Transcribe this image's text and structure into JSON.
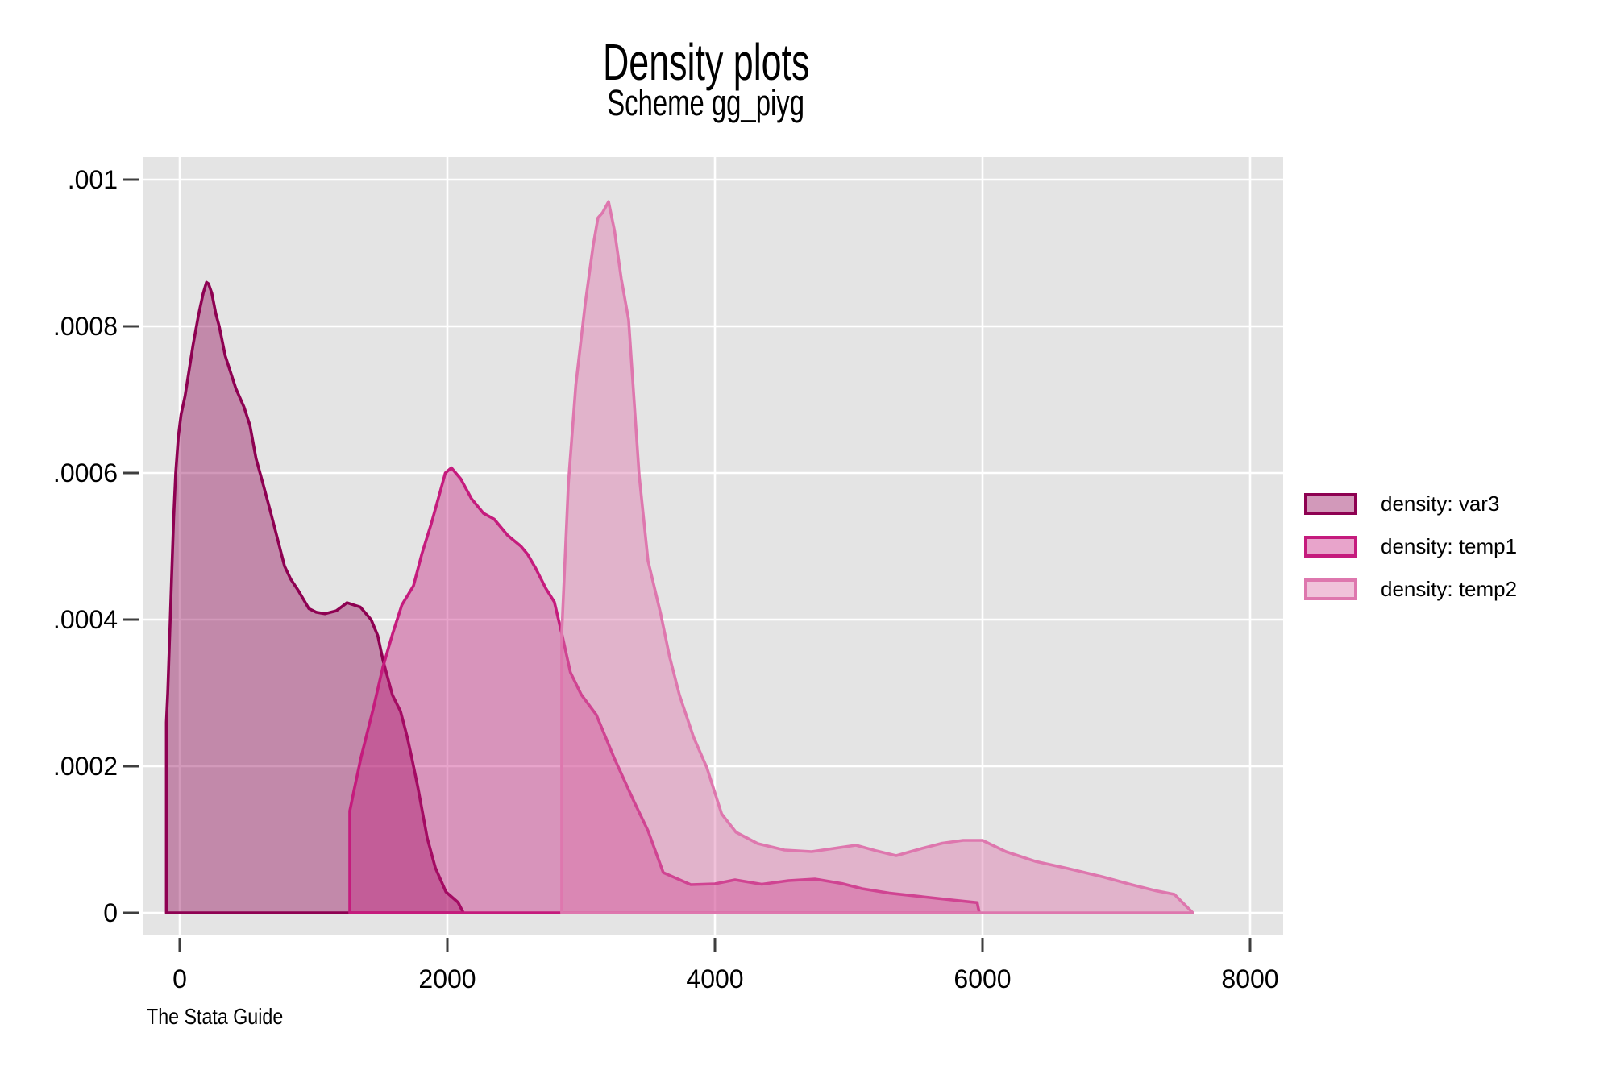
{
  "title": "Density plots",
  "subtitle": "Scheme gg_piyg",
  "caption": "The Stata Guide",
  "colors": {
    "plot_background": "#e4e4e4",
    "gridline": "#ffffff",
    "tick": "#3e3e3e",
    "text": "#000000",
    "var3_stroke": "#8e0152",
    "temp1_stroke": "#c51b7d",
    "temp2_stroke": "#de77ae"
  },
  "legend": {
    "position": "right",
    "items": [
      {
        "label": "density: var3",
        "stroke": "#8e0152",
        "fill": "rgba(142,1,82,0.40)"
      },
      {
        "label": "density: temp1",
        "stroke": "#c51b7d",
        "fill": "rgba(197,27,125,0.40)"
      },
      {
        "label": "density: temp2",
        "stroke": "#de77ae",
        "fill": "rgba(222,119,174,0.45)"
      }
    ]
  },
  "chart_data": {
    "type": "area",
    "title": "Density plots",
    "subtitle": "Scheme gg_piyg",
    "xlabel": "",
    "ylabel": "",
    "xlim": [
      -280,
      8250
    ],
    "ylim": [
      0,
      0.00103
    ],
    "grid": "white gridlines on gray plot region, both axes",
    "legend_position": "right",
    "x_ticks": [
      {
        "value": 0,
        "label": "0"
      },
      {
        "value": 2000,
        "label": "2000"
      },
      {
        "value": 4000,
        "label": "4000"
      },
      {
        "value": 6000,
        "label": "6000"
      },
      {
        "value": 8000,
        "label": "8000"
      }
    ],
    "y_ticks": [
      {
        "value": 0,
        "label": "0"
      },
      {
        "value": 0.0002,
        "label": ".0002"
      },
      {
        "value": 0.0004,
        "label": ".0004"
      },
      {
        "value": 0.0006,
        "label": ".0006"
      },
      {
        "value": 0.0008,
        "label": ".0008"
      },
      {
        "value": 0.001,
        "label": ".001"
      }
    ],
    "series": [
      {
        "name": "density: var3",
        "stroke": "#8e0152",
        "fill": "rgba(142,1,82,0.40)",
        "points": [
          [
            -100,
            0
          ],
          [
            -100,
            0.00026
          ],
          [
            -90,
            0.0003
          ],
          [
            -75,
            0.00038
          ],
          [
            -60,
            0.00046
          ],
          [
            -45,
            0.00054
          ],
          [
            -30,
            0.0006
          ],
          [
            -10,
            0.00065
          ],
          [
            10,
            0.00068
          ],
          [
            40,
            0.000705
          ],
          [
            70,
            0.00074
          ],
          [
            100,
            0.000775
          ],
          [
            140,
            0.000815
          ],
          [
            175,
            0.000845
          ],
          [
            200,
            0.00086
          ],
          [
            215,
            0.000858
          ],
          [
            240,
            0.000845
          ],
          [
            270,
            0.000817
          ],
          [
            295,
            0.0008
          ],
          [
            340,
            0.00076
          ],
          [
            420,
            0.000715
          ],
          [
            480,
            0.00069
          ],
          [
            525,
            0.000665
          ],
          [
            570,
            0.00062
          ],
          [
            627,
            0.000582
          ],
          [
            670,
            0.000553
          ],
          [
            717,
            0.00052
          ],
          [
            783,
            0.000473
          ],
          [
            830,
            0.000455
          ],
          [
            885,
            0.00044
          ],
          [
            965,
            0.000415
          ],
          [
            1020,
            0.00041
          ],
          [
            1085,
            0.000408
          ],
          [
            1170,
            0.000412
          ],
          [
            1215,
            0.000418
          ],
          [
            1250,
            0.000423
          ],
          [
            1300,
            0.00042
          ],
          [
            1350,
            0.000417
          ],
          [
            1430,
            0.0004
          ],
          [
            1480,
            0.000378
          ],
          [
            1520,
            0.000344
          ],
          [
            1590,
            0.000297
          ],
          [
            1650,
            0.000275
          ],
          [
            1700,
            0.00024
          ],
          [
            1730,
            0.000215
          ],
          [
            1780,
            0.000171
          ],
          [
            1850,
            0.000102
          ],
          [
            1910,
            6.15e-05
          ],
          [
            1990,
            2.86e-05
          ],
          [
            2080,
            1.43e-05
          ],
          [
            2120,
            0
          ]
        ]
      },
      {
        "name": "density: temp1",
        "stroke": "#c51b7d",
        "fill": "rgba(197,27,125,0.40)",
        "points": [
          [
            1271,
            0
          ],
          [
            1271,
            0.000139
          ],
          [
            1300,
            0.000165
          ],
          [
            1355,
            0.000212
          ],
          [
            1446,
            0.000278
          ],
          [
            1518,
            0.000335
          ],
          [
            1590,
            0.00038
          ],
          [
            1660,
            0.00042
          ],
          [
            1747,
            0.000446
          ],
          [
            1810,
            0.00049
          ],
          [
            1880,
            0.000531
          ],
          [
            1940,
            0.00057
          ],
          [
            1985,
            0.0006
          ],
          [
            2030,
            0.000607
          ],
          [
            2100,
            0.000592
          ],
          [
            2180,
            0.000565
          ],
          [
            2270,
            0.000545
          ],
          [
            2350,
            0.000537
          ],
          [
            2450,
            0.000515
          ],
          [
            2550,
            0.0005
          ],
          [
            2600,
            0.000489
          ],
          [
            2660,
            0.00047
          ],
          [
            2735,
            0.000443
          ],
          [
            2800,
            0.000424
          ],
          [
            2860,
            0.000377
          ],
          [
            2920,
            0.000328
          ],
          [
            3000,
            0.000298
          ],
          [
            3114,
            0.00027
          ],
          [
            3250,
            0.00021
          ],
          [
            3400,
            0.00015
          ],
          [
            3500,
            0.000112
          ],
          [
            3614,
            5.5e-05
          ],
          [
            3820,
            3.85e-05
          ],
          [
            4000,
            3.96e-05
          ],
          [
            4150,
            4.51e-05
          ],
          [
            4350,
            3.9e-05
          ],
          [
            4550,
            4.4e-05
          ],
          [
            4750,
            4.6e-05
          ],
          [
            4950,
            4e-05
          ],
          [
            5100,
            3.3e-05
          ],
          [
            5300,
            2.7e-05
          ],
          [
            5550,
            2.2e-05
          ],
          [
            5800,
            1.7e-05
          ],
          [
            5960,
            1.4e-05
          ],
          [
            5976,
            0
          ]
        ]
      },
      {
        "name": "density: temp2",
        "stroke": "#de77ae",
        "fill": "rgba(222,119,174,0.45)",
        "points": [
          [
            2855,
            0
          ],
          [
            2855,
            0.00038
          ],
          [
            2905,
            0.000586
          ],
          [
            2960,
            0.00072
          ],
          [
            3030,
            0.00083
          ],
          [
            3090,
            0.00091
          ],
          [
            3126,
            0.000948
          ],
          [
            3160,
            0.000955
          ],
          [
            3205,
            0.00097
          ],
          [
            3250,
            0.00093
          ],
          [
            3300,
            0.000865
          ],
          [
            3355,
            0.000809
          ],
          [
            3434,
            0.000597
          ],
          [
            3500,
            0.00048
          ],
          [
            3596,
            0.000407
          ],
          [
            3660,
            0.00035
          ],
          [
            3735,
            0.000297
          ],
          [
            3840,
            0.00024
          ],
          [
            3940,
            0.000198
          ],
          [
            4050,
            0.000135
          ],
          [
            4157,
            0.00011
          ],
          [
            4320,
            9.45e-05
          ],
          [
            4520,
            8.57e-05
          ],
          [
            4723,
            8.35e-05
          ],
          [
            5054,
            9.23e-05
          ],
          [
            5200,
            8.5e-05
          ],
          [
            5355,
            7.8e-05
          ],
          [
            5550,
            8.8e-05
          ],
          [
            5700,
            9.5e-05
          ],
          [
            5855,
            9.89e-05
          ],
          [
            6000,
            9.89e-05
          ],
          [
            6175,
            8.35e-05
          ],
          [
            6400,
            7e-05
          ],
          [
            6640,
            6.04e-05
          ],
          [
            6900,
            4.9e-05
          ],
          [
            7114,
            3.85e-05
          ],
          [
            7300,
            3e-05
          ],
          [
            7434,
            2.53e-05
          ],
          [
            7572,
            0
          ]
        ]
      }
    ]
  }
}
